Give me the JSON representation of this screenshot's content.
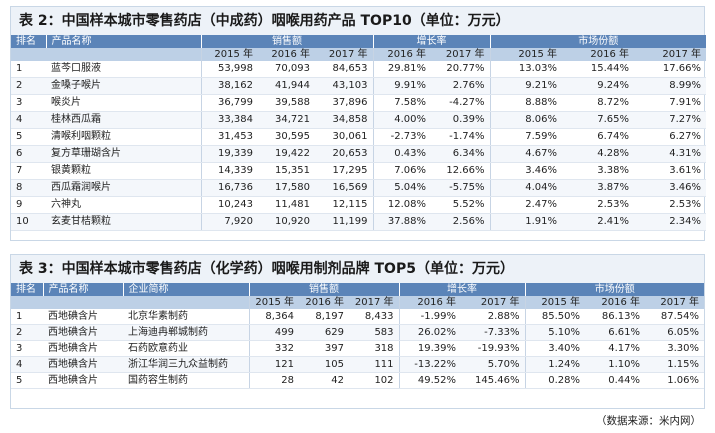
{
  "table2": {
    "title": "表 2：中国样本城市零售药店（中成药）咽喉用药产品 TOP10（单位：万元）",
    "headers": {
      "rank": "排名",
      "name": "产品名称",
      "sales": "销售额",
      "growth": "增长率",
      "share": "市场份额"
    },
    "years3": [
      "2015 年",
      "2016 年",
      "2017 年"
    ],
    "years2": [
      "2016 年",
      "2017 年"
    ],
    "rows": [
      {
        "rank": "1",
        "name": "蓝芩口服液",
        "sales": [
          "53,998",
          "70,093",
          "84,653"
        ],
        "growth": [
          "29.81%",
          "20.77%"
        ],
        "share": [
          "13.03%",
          "15.44%",
          "17.66%"
        ]
      },
      {
        "rank": "2",
        "name": "金嗓子喉片",
        "sales": [
          "38,162",
          "41,944",
          "43,103"
        ],
        "growth": [
          "9.91%",
          "2.76%"
        ],
        "share": [
          "9.21%",
          "9.24%",
          "8.99%"
        ]
      },
      {
        "rank": "3",
        "name": "喉炎片",
        "sales": [
          "36,799",
          "39,588",
          "37,896"
        ],
        "growth": [
          "7.58%",
          "-4.27%"
        ],
        "share": [
          "8.88%",
          "8.72%",
          "7.91%"
        ]
      },
      {
        "rank": "4",
        "name": "桂林西瓜霜",
        "sales": [
          "33,384",
          "34,721",
          "34,858"
        ],
        "growth": [
          "4.00%",
          "0.39%"
        ],
        "share": [
          "8.06%",
          "7.65%",
          "7.27%"
        ]
      },
      {
        "rank": "5",
        "name": "清喉利咽颗粒",
        "sales": [
          "31,453",
          "30,595",
          "30,061"
        ],
        "growth": [
          "-2.73%",
          "-1.74%"
        ],
        "share": [
          "7.59%",
          "6.74%",
          "6.27%"
        ]
      },
      {
        "rank": "6",
        "name": "复方草珊瑚含片",
        "sales": [
          "19,339",
          "19,422",
          "20,653"
        ],
        "growth": [
          "0.43%",
          "6.34%"
        ],
        "share": [
          "4.67%",
          "4.28%",
          "4.31%"
        ]
      },
      {
        "rank": "7",
        "name": "银黄颗粒",
        "sales": [
          "14,339",
          "15,351",
          "17,295"
        ],
        "growth": [
          "7.06%",
          "12.66%"
        ],
        "share": [
          "3.46%",
          "3.38%",
          "3.61%"
        ]
      },
      {
        "rank": "8",
        "name": "西瓜霜润喉片",
        "sales": [
          "16,736",
          "17,580",
          "16,569"
        ],
        "growth": [
          "5.04%",
          "-5.75%"
        ],
        "share": [
          "4.04%",
          "3.87%",
          "3.46%"
        ]
      },
      {
        "rank": "9",
        "name": "六神丸",
        "sales": [
          "10,243",
          "11,481",
          "12,115"
        ],
        "growth": [
          "12.08%",
          "5.52%"
        ],
        "share": [
          "2.47%",
          "2.53%",
          "2.53%"
        ]
      },
      {
        "rank": "10",
        "name": "玄麦甘桔颗粒",
        "sales": [
          "7,920",
          "10,920",
          "11,199"
        ],
        "growth": [
          "37.88%",
          "2.56%"
        ],
        "share": [
          "1.91%",
          "2.41%",
          "2.34%"
        ]
      }
    ]
  },
  "table3": {
    "title": "表 3：中国样本城市零售药店（化学药）咽喉用制剂品牌 TOP5（单位：万元）",
    "headers": {
      "rank": "排名",
      "name": "产品名称",
      "company": "企业简称",
      "sales": "销售额",
      "growth": "增长率",
      "share": "市场份额"
    },
    "years3": [
      "2015 年",
      "2016 年",
      "2017 年"
    ],
    "years2": [
      "2016 年",
      "2017 年"
    ],
    "rows": [
      {
        "rank": "1",
        "name": "西地碘含片",
        "company": "北京华素制药",
        "sales": [
          "8,364",
          "8,197",
          "8,433"
        ],
        "growth": [
          "-1.99%",
          "2.88%"
        ],
        "share": [
          "85.50%",
          "86.13%",
          "87.54%"
        ]
      },
      {
        "rank": "2",
        "name": "西地碘含片",
        "company": "上海迪冉郸城制药",
        "sales": [
          "499",
          "629",
          "583"
        ],
        "growth": [
          "26.02%",
          "-7.33%"
        ],
        "share": [
          "5.10%",
          "6.61%",
          "6.05%"
        ]
      },
      {
        "rank": "3",
        "name": "西地碘含片",
        "company": "石药欧意药业",
        "sales": [
          "332",
          "397",
          "318"
        ],
        "growth": [
          "19.39%",
          "-19.93%"
        ],
        "share": [
          "3.40%",
          "4.17%",
          "3.30%"
        ]
      },
      {
        "rank": "4",
        "name": "西地碘含片",
        "company": "浙江华润三九众益制药",
        "sales": [
          "121",
          "105",
          "111"
        ],
        "growth": [
          "-13.22%",
          "5.70%"
        ],
        "share": [
          "1.24%",
          "1.10%",
          "1.15%"
        ]
      },
      {
        "rank": "5",
        "name": "西地碘含片",
        "company": "国药容生制药",
        "sales": [
          "28",
          "42",
          "102"
        ],
        "growth": [
          "49.52%",
          "145.46%"
        ],
        "share": [
          "0.28%",
          "0.44%",
          "1.06%"
        ]
      }
    ]
  },
  "source": "（数据来源：米内网）"
}
